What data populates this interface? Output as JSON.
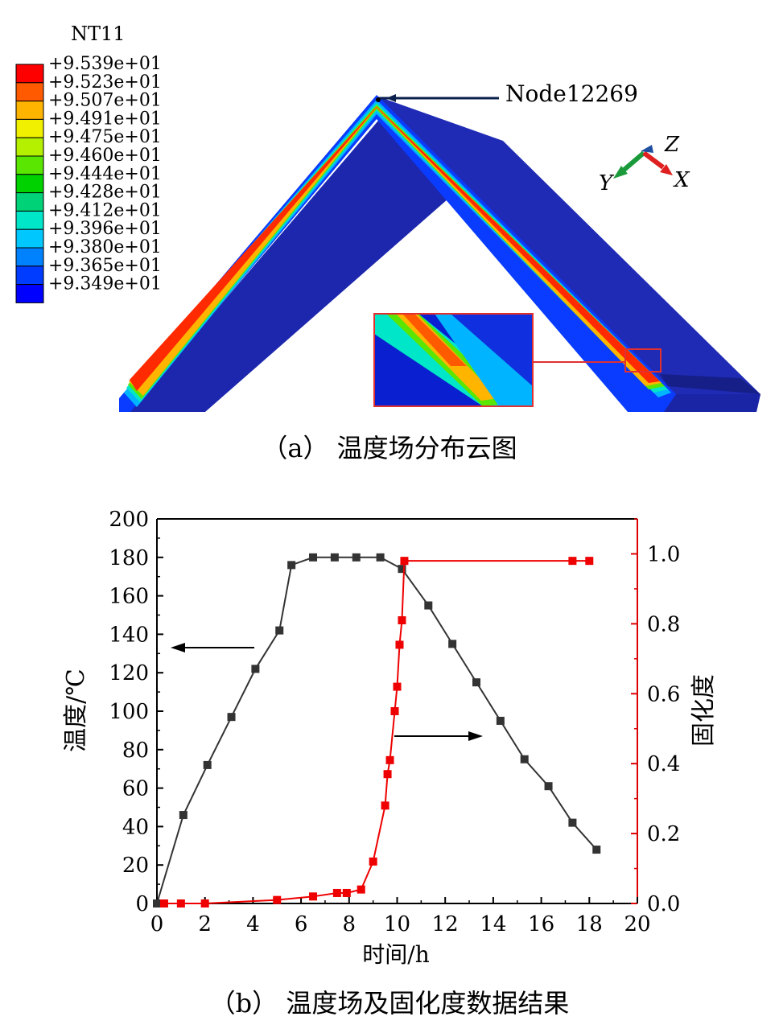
{
  "figure_a": {
    "caption": "（a） 温度场分布云图",
    "legend_title": "NT11",
    "legend_values": [
      "+9.539e+01",
      "+9.523e+01",
      "+9.507e+01",
      "+9.491e+01",
      "+9.475e+01",
      "+9.460e+01",
      "+9.444e+01",
      "+9.428e+01",
      "+9.412e+01",
      "+9.396e+01",
      "+9.380e+01",
      "+9.365e+01",
      "+9.349e+01"
    ],
    "legend_colors": [
      "#ff0000",
      "#ff5a00",
      "#ffb400",
      "#f0f000",
      "#b4f000",
      "#5ae600",
      "#00d200",
      "#00d278",
      "#00e6c8",
      "#00c8ff",
      "#0082ff",
      "#003cff",
      "#0000ff"
    ],
    "node_label": "Node12269",
    "axis_triad": {
      "x": "X",
      "y": "Y",
      "z": "Z"
    }
  },
  "figure_b": {
    "caption": "（b） 温度场及固化度数据结果"
  },
  "chart_data": {
    "type": "line",
    "xlabel": "时间/h",
    "ylabel": "温度/℃",
    "y2label": "固化度",
    "xlim": [
      0,
      20
    ],
    "ylim": [
      0,
      200
    ],
    "y2lim": [
      0,
      1.1
    ],
    "xticks": [
      "0",
      "2",
      "4",
      "6",
      "8",
      "10",
      "12",
      "14",
      "16",
      "18",
      "20"
    ],
    "yticks": [
      "0",
      "20",
      "40",
      "60",
      "80",
      "100",
      "120",
      "140",
      "160",
      "180",
      "200"
    ],
    "y2ticks": [
      "0.0",
      "0.2",
      "0.4",
      "0.6",
      "0.8",
      "1.0"
    ],
    "grid": false,
    "series": [
      {
        "axis": "left",
        "color": "#333333",
        "x": [
          0,
          1.1,
          2.1,
          3.1,
          4.1,
          5.1,
          5.6,
          6.5,
          7.4,
          8.3,
          9.3,
          10.2,
          11.3,
          12.3,
          13.3,
          14.3,
          15.3,
          16.3,
          17.3,
          18.3
        ],
        "y": [
          0,
          46,
          72,
          97,
          122,
          142,
          176,
          180,
          180,
          180,
          180,
          174,
          155,
          135,
          115,
          95,
          75,
          61,
          42,
          28
        ]
      },
      {
        "axis": "right",
        "color": "#ee0000",
        "x": [
          0.3,
          1,
          2,
          5,
          6.5,
          7.5,
          7.9,
          8.5,
          9,
          9.5,
          9.6,
          9.7,
          9.9,
          10.0,
          10.1,
          10.2,
          10.3,
          17.3,
          18.0
        ],
        "y": [
          0.0,
          0.0,
          0.0,
          0.01,
          0.02,
          0.03,
          0.03,
          0.04,
          0.12,
          0.28,
          0.37,
          0.41,
          0.55,
          0.62,
          0.74,
          0.81,
          0.98,
          0.98,
          0.98
        ]
      }
    ]
  }
}
